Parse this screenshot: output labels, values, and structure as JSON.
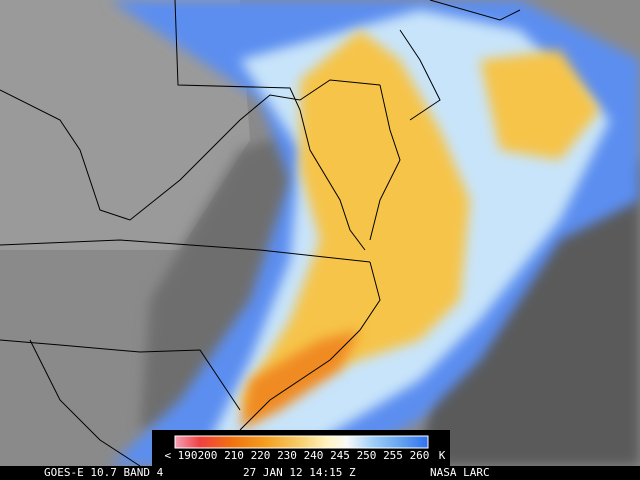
{
  "legend": {
    "labels": [
      "< 190",
      "200",
      "210",
      "220",
      "230",
      "240",
      "245",
      "250",
      "255",
      "260"
    ],
    "unit": "K"
  },
  "caption": {
    "satellite": "GOES-E 10.7 BAND 4",
    "time": "27 JAN 12 14:15 Z",
    "source": "NASA LARC"
  }
}
